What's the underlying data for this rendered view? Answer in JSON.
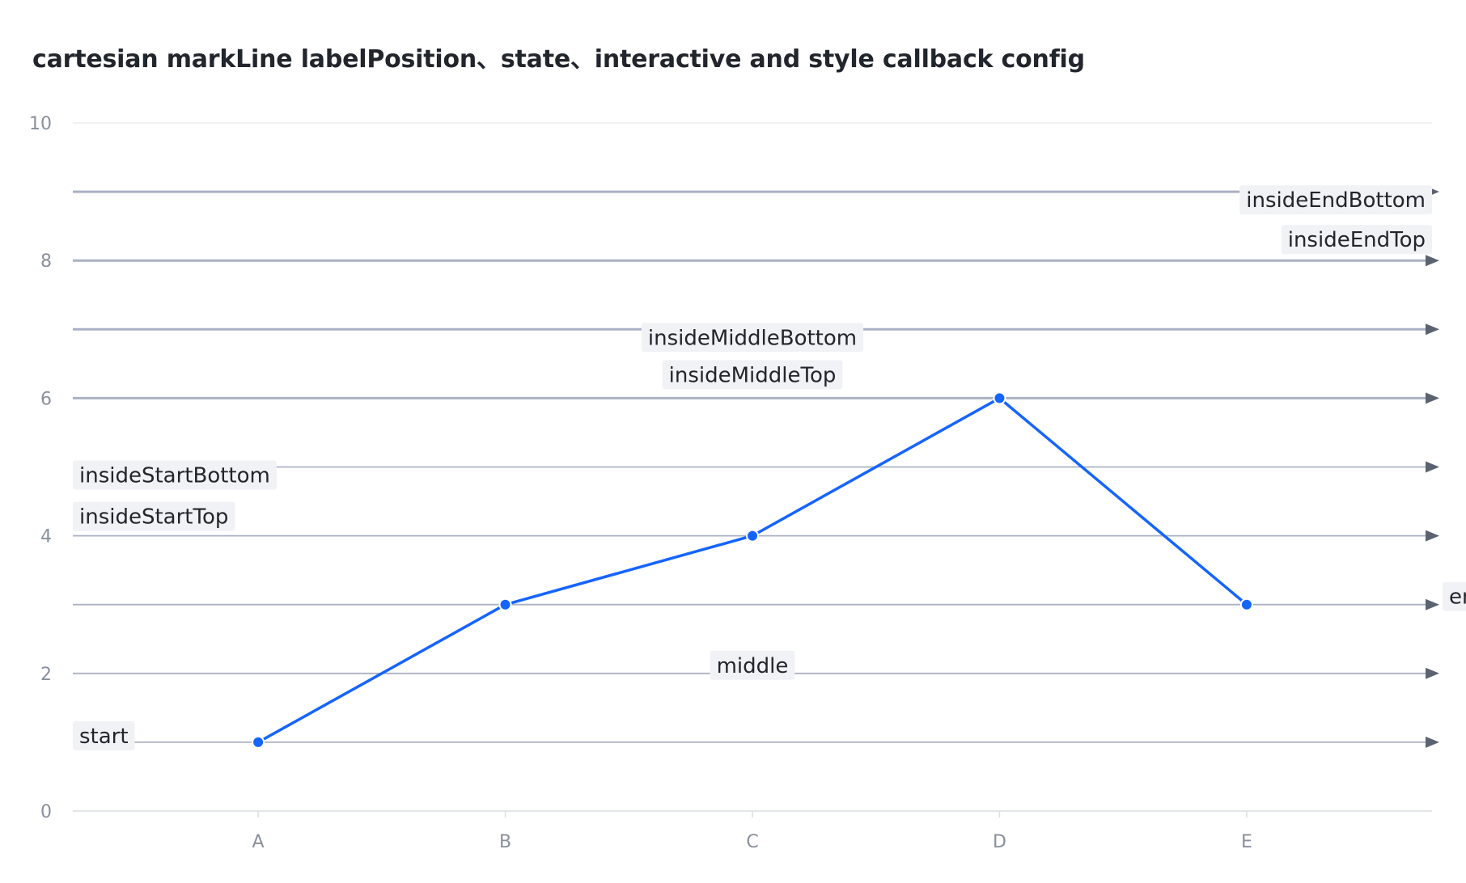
{
  "chart_data": {
    "type": "line",
    "title": "cartesian markLine labelPosition、state、interactive and style callback config",
    "categories": [
      "A",
      "B",
      "C",
      "D",
      "E"
    ],
    "values": [
      1,
      3,
      4,
      6,
      3
    ],
    "ylim": [
      0,
      10
    ],
    "yticks": [
      0,
      2,
      4,
      6,
      8,
      10
    ],
    "grid": true,
    "series_color": "#1664ff",
    "mark_line_color": "#aab1c3",
    "label_bg": "#f1f2f5",
    "mark_lines": [
      {
        "y": 1,
        "label": "start",
        "position": "start",
        "bold": false
      },
      {
        "y": 2,
        "label": "middle",
        "position": "middle",
        "bold": false
      },
      {
        "y": 3,
        "label": "end",
        "position": "end",
        "bold": false
      },
      {
        "y": 4,
        "label": "insideStartTop",
        "position": "insideStartTop",
        "bold": false
      },
      {
        "y": 5,
        "label": "insideStartBottom",
        "position": "insideStartBottom",
        "bold": false
      },
      {
        "y": 6,
        "label": "insideMiddleTop",
        "position": "insideMiddleTop",
        "bold": true
      },
      {
        "y": 7,
        "label": "insideMiddleBottom",
        "position": "insideMiddleBottom",
        "bold": true
      },
      {
        "y": 8,
        "label": "insideEndTop",
        "position": "insideEndTop",
        "bold": true
      },
      {
        "y": 9,
        "label": "insideEndBottom",
        "position": "insideEndBottom",
        "bold": true
      }
    ]
  }
}
